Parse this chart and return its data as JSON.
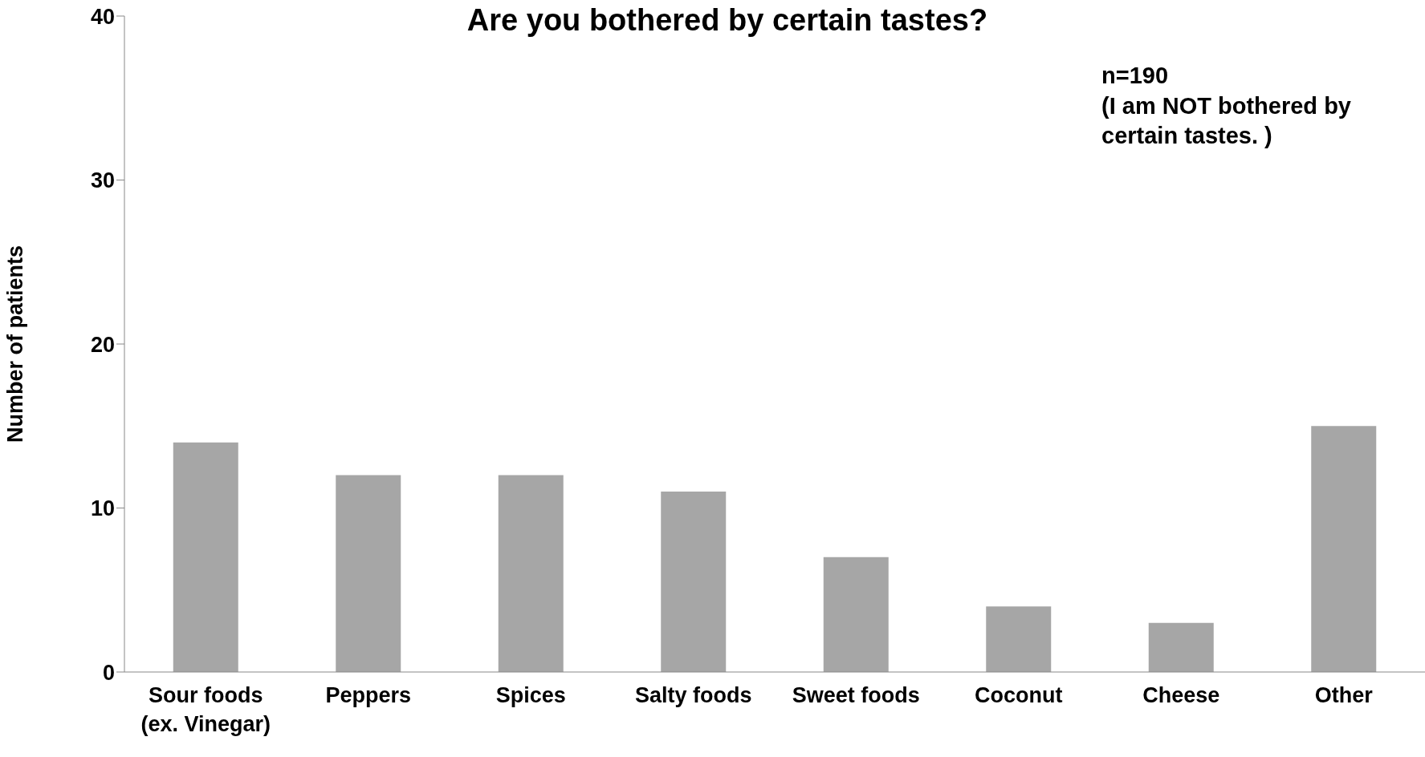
{
  "chart_data": {
    "type": "bar",
    "title": "Are you bothered by certain tastes?",
    "ylabel": "Number of patients",
    "categories": [
      "Sour foods (ex. Vinegar)",
      "Peppers",
      "Spices",
      "Salty foods",
      "Sweet foods",
      "Coconut",
      "Cheese",
      "Other"
    ],
    "values": [
      14,
      12,
      12,
      11,
      7,
      4,
      3,
      15
    ],
    "color": "#a6a6a6",
    "ylim": [
      0,
      40
    ],
    "yticks": [
      0,
      10,
      20,
      30,
      40
    ],
    "grid": false,
    "legend": false,
    "annotations": [
      "n=190",
      "(I am NOT bothered by certain tastes. )"
    ]
  }
}
